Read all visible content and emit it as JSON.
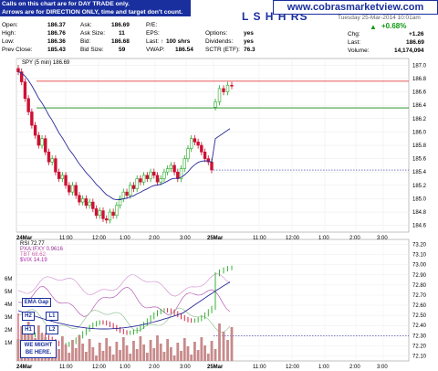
{
  "notice": {
    "line1": "Calls on this chart are for DAY TRADE only.",
    "line2": "Arrows are for DIRECTION ONLY, time and target don't count."
  },
  "ticker": "L S H H RS",
  "site": "www.cobrasmarketview.com",
  "date_text": "Tuesday 25-Mar-2014 10:01am",
  "quote": {
    "open_label": "Open:",
    "open": "186.37",
    "high_label": "High:",
    "high": "186.76",
    "low_label": "Low:",
    "low": "186.36",
    "prev_label": "Prev Close:",
    "prev": "185.43",
    "ask_label": "Ask:",
    "ask": "186.69",
    "asksize_label": "Ask Size:",
    "asksize": "11",
    "bid_label": "Bid:",
    "bid": "186.68",
    "bidsize_label": "Bid Size:",
    "bidsize": "59",
    "pe_label": "P/E:",
    "pe": "",
    "eps_label": "EPS:",
    "eps": "",
    "last_label": "Last:",
    "last_size": "100 shrs",
    "vwap_label": "VWAP:",
    "vwap": "186.54",
    "options_label": "Options:",
    "options": "yes",
    "dividends_label": "Dividends:",
    "dividends": "yes",
    "sctr_label": "SCTR (ETF):",
    "sctr": "76.3",
    "chg_label": "Chg:",
    "chg": "+1.26",
    "pct": "+0.68%",
    "last2_label": "Last:",
    "last2": "186.69",
    "volume_label": "Volume:",
    "volume": "14,174,094"
  },
  "colors": {
    "up": "#22aa22",
    "down": "#cc1133",
    "ma": "#2a2a9a",
    "resistance": "#dd2222",
    "support": "#118811",
    "dotted": "#2a2aa0",
    "bars": "#c88a8a",
    "accent": "#1a2f9e"
  },
  "chart_data": [
    {
      "type": "candlestick",
      "title": "SPY (5 min) 186.69",
      "x": [
        "24Mar",
        "11:00",
        "12:00",
        "1:00",
        "2:00",
        "3:00",
        "25Mar",
        "11:00",
        "12:00",
        "1:00",
        "2:00",
        "3:00"
      ],
      "ylim": [
        184.5,
        187.1
      ],
      "yticks": [
        "187.0",
        "186.8",
        "186.6",
        "186.4",
        "186.2",
        "186.0",
        "185.8",
        "185.6",
        "185.4",
        "185.2",
        "185.0",
        "184.8",
        "184.6"
      ],
      "horizontal_lines": [
        {
          "value": 186.76,
          "color": "red"
        },
        {
          "value": 186.36,
          "color": "green"
        },
        {
          "value": 185.43,
          "style": "dotted",
          "color": "blue"
        }
      ],
      "closes": [
        186.9,
        186.75,
        186.5,
        186.3,
        186.1,
        185.95,
        185.8,
        185.9,
        185.7,
        185.55,
        185.6,
        185.4,
        185.3,
        185.35,
        185.2,
        185.1,
        185.2,
        185.05,
        184.95,
        185.0,
        184.9,
        184.95,
        184.85,
        184.75,
        184.82,
        184.7,
        184.68,
        184.8,
        184.75,
        184.9,
        185.0,
        185.1,
        185.05,
        185.2,
        185.15,
        185.3,
        185.25,
        185.35,
        185.3,
        185.4,
        185.35,
        185.25,
        185.3,
        185.4,
        185.45,
        185.5,
        185.4,
        185.3,
        185.45,
        185.6,
        185.75,
        185.9,
        185.85,
        185.8,
        185.7,
        185.6,
        185.55,
        185.43,
        186.45,
        186.65,
        186.6,
        186.7,
        186.69
      ],
      "ma_label": "MA"
    },
    {
      "type": "line",
      "title": "RSI 72.77",
      "legend": [
        "PXA:IFXY 0.9616",
        "TBT 68.62",
        "$VIX 14.19"
      ],
      "x": [
        "24Mar",
        "11:00",
        "12:00",
        "1:00",
        "2:00",
        "3:00",
        "25Mar",
        "11:00",
        "12:00",
        "1:00",
        "2:00",
        "3:00"
      ],
      "ylim": [
        72.05,
        73.25
      ],
      "yticks": [
        "73.20",
        "73.10",
        "73.00",
        "72.90",
        "72.80",
        "72.70",
        "72.60",
        "72.50",
        "72.40",
        "72.30",
        "72.20",
        "72.10"
      ],
      "vol_ticks": [
        "6M",
        "5M",
        "4M",
        "3M",
        "2M",
        "1M"
      ],
      "horizontal_lines": [
        {
          "value": 72.3,
          "style": "dotted",
          "color": "blue"
        }
      ]
    }
  ],
  "notes": {
    "ema_gap": "EMA Gap",
    "h2": "H2",
    "l1": "L1",
    "h1": "H1",
    "l2": "L2",
    "might": "WE MIGHT BE HERE."
  }
}
